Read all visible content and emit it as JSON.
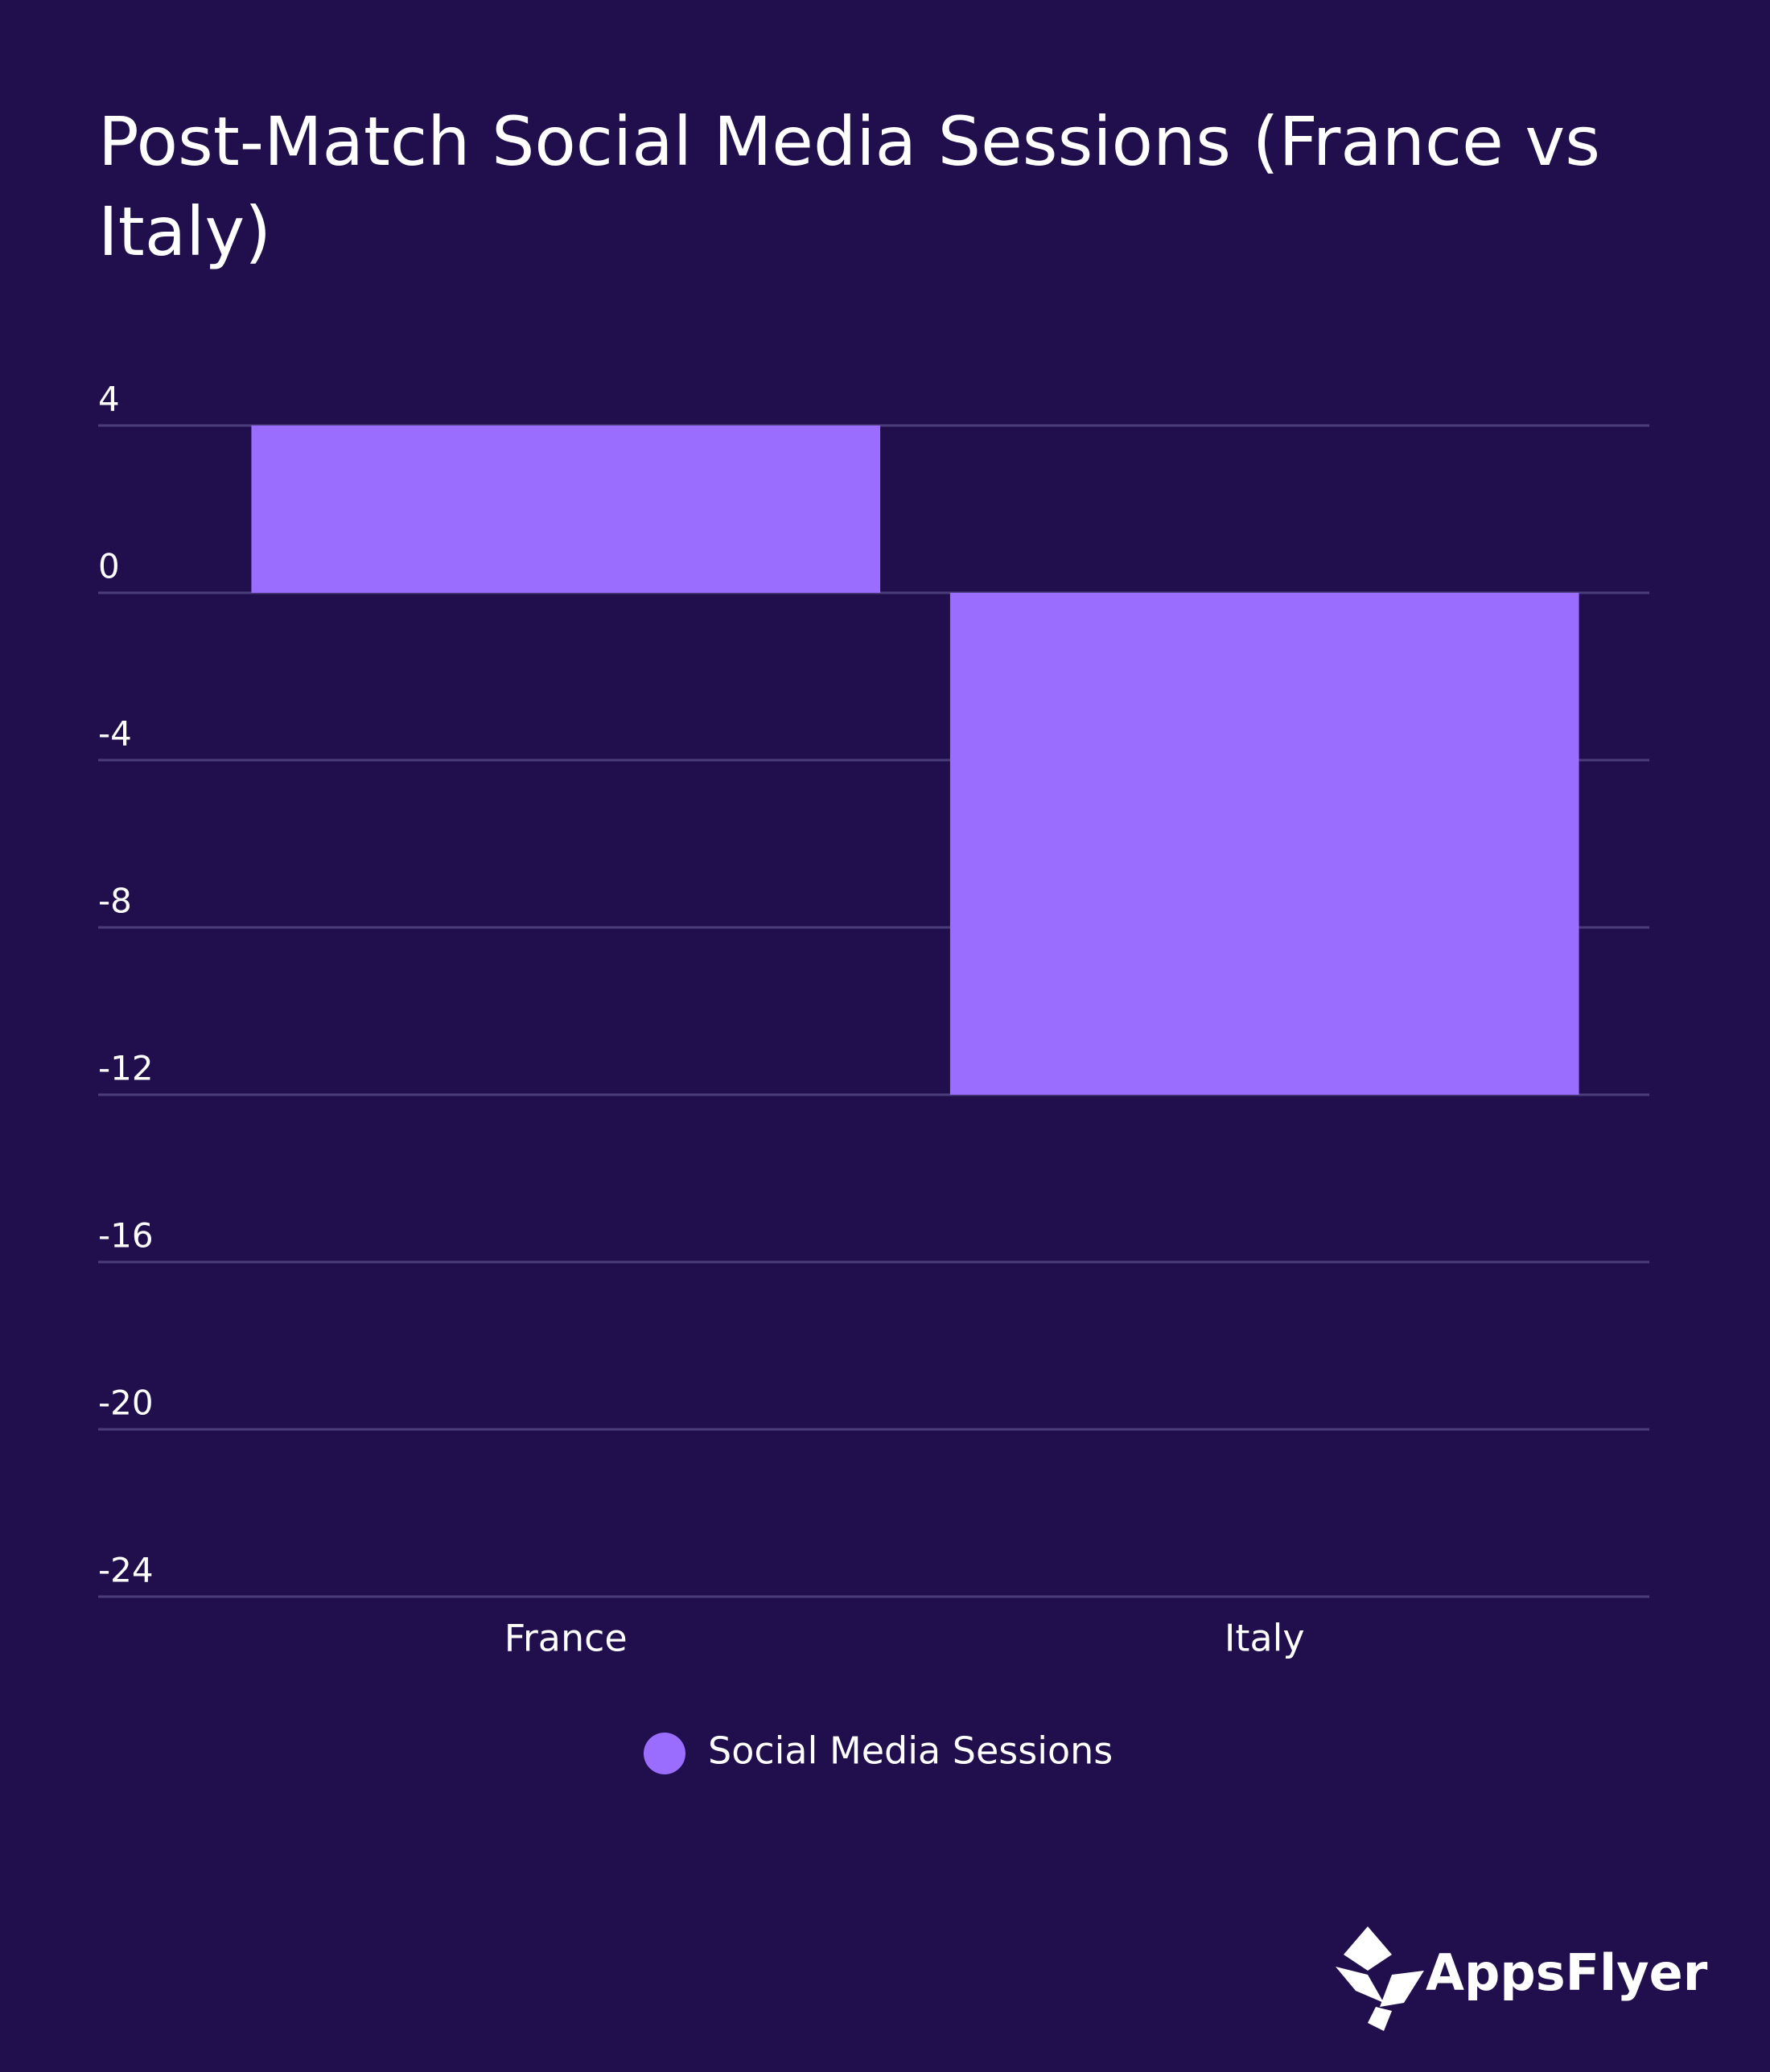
{
  "chart_data": {
    "type": "bar",
    "title": "Post-Match Social Media Sessions (France vs Italy)",
    "categories": [
      "France",
      "Italy"
    ],
    "series": [
      {
        "name": "Social Media Sessions",
        "color": "#9b6dff",
        "values": [
          4,
          -12
        ]
      }
    ],
    "ylim": [
      -24,
      4
    ],
    "yticks": [
      4,
      0,
      -4,
      -8,
      -12,
      -16,
      -20,
      -24
    ],
    "grid": true,
    "legend": "bottom"
  },
  "logo": "AppsFlyer"
}
